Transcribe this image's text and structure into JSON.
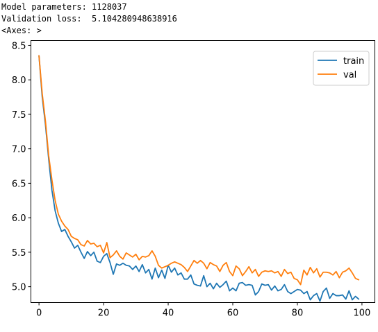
{
  "output": {
    "line1": "Model parameters: 1128037",
    "line2": "Validation loss:  5.104280948638916",
    "line3": "<Axes: >"
  },
  "chart_data": {
    "type": "line",
    "title": "",
    "xlabel": "",
    "ylabel": "",
    "xlim": [
      -2.5,
      104
    ],
    "ylim": [
      4.77,
      8.57
    ],
    "xticks": [
      0,
      20,
      40,
      60,
      80,
      100
    ],
    "yticks": [
      5.0,
      5.5,
      6.0,
      6.5,
      7.0,
      7.5,
      8.0,
      8.5
    ],
    "xtick_labels": [
      "0",
      "20",
      "40",
      "60",
      "80",
      "100"
    ],
    "ytick_labels": [
      "5.0",
      "5.5",
      "6.0",
      "6.5",
      "7.0",
      "7.5",
      "8.0",
      "8.5"
    ],
    "grid": false,
    "legend_position": "top-right",
    "x": [
      0,
      1,
      2,
      3,
      4,
      5,
      6,
      7,
      8,
      9,
      10,
      11,
      12,
      13,
      14,
      15,
      16,
      17,
      18,
      19,
      20,
      21,
      22,
      23,
      24,
      25,
      26,
      27,
      28,
      29,
      30,
      31,
      32,
      33,
      34,
      35,
      36,
      37,
      38,
      39,
      40,
      41,
      42,
      43,
      44,
      45,
      46,
      47,
      48,
      49,
      50,
      51,
      52,
      53,
      54,
      55,
      56,
      57,
      58,
      59,
      60,
      61,
      62,
      63,
      64,
      65,
      66,
      67,
      68,
      69,
      70,
      71,
      72,
      73,
      74,
      75,
      76,
      77,
      78,
      79,
      80,
      81,
      82,
      83,
      84,
      85,
      86,
      87,
      88,
      89,
      90,
      91,
      92,
      93,
      94,
      95,
      96,
      97,
      98,
      99
    ],
    "series": [
      {
        "name": "train",
        "color": "#1f77b4",
        "values": [
          8.35,
          7.75,
          7.35,
          6.85,
          6.4,
          6.1,
          5.92,
          5.8,
          5.83,
          5.73,
          5.65,
          5.56,
          5.6,
          5.5,
          5.41,
          5.51,
          5.45,
          5.5,
          5.37,
          5.35,
          5.44,
          5.48,
          5.35,
          5.18,
          5.33,
          5.31,
          5.34,
          5.31,
          5.3,
          5.25,
          5.3,
          5.22,
          5.32,
          5.2,
          5.25,
          5.11,
          5.27,
          5.13,
          5.24,
          5.12,
          5.31,
          5.21,
          5.27,
          5.17,
          5.2,
          5.11,
          5.11,
          5.17,
          5.04,
          5.02,
          5.01,
          5.16,
          5.0,
          5.05,
          4.97,
          5.05,
          4.99,
          5.03,
          5.08,
          4.94,
          4.98,
          4.94,
          5.05,
          5.06,
          5.02,
          5.03,
          5.02,
          4.88,
          4.93,
          5.04,
          5.02,
          5.03,
          4.95,
          5.01,
          4.94,
          4.96,
          5.03,
          4.93,
          4.9,
          4.93,
          4.96,
          4.95,
          4.9,
          4.93,
          4.81,
          4.87,
          4.9,
          4.79,
          4.93,
          4.98,
          4.83,
          4.9,
          4.87,
          4.87,
          4.88,
          4.82,
          4.94,
          4.81,
          4.86,
          4.82
        ]
      },
      {
        "name": "val",
        "color": "#ff7f0e",
        "values": [
          8.35,
          7.8,
          7.4,
          6.9,
          6.55,
          6.25,
          6.05,
          5.95,
          5.88,
          5.83,
          5.73,
          5.7,
          5.68,
          5.61,
          5.59,
          5.67,
          5.62,
          5.63,
          5.58,
          5.6,
          5.49,
          5.64,
          5.42,
          5.46,
          5.52,
          5.44,
          5.4,
          5.49,
          5.46,
          5.43,
          5.47,
          5.39,
          5.44,
          5.43,
          5.45,
          5.52,
          5.44,
          5.31,
          5.27,
          5.29,
          5.31,
          5.34,
          5.36,
          5.34,
          5.32,
          5.28,
          5.22,
          5.3,
          5.38,
          5.34,
          5.38,
          5.34,
          5.26,
          5.35,
          5.32,
          5.3,
          5.22,
          5.31,
          5.35,
          5.22,
          5.16,
          5.3,
          5.26,
          5.16,
          5.22,
          5.29,
          5.2,
          5.25,
          5.15,
          5.21,
          5.23,
          5.22,
          5.23,
          5.2,
          5.22,
          5.15,
          5.25,
          5.19,
          5.21,
          5.12,
          5.1,
          5.03,
          5.24,
          5.17,
          5.28,
          5.2,
          5.26,
          5.14,
          5.21,
          5.21,
          5.2,
          5.17,
          5.22,
          5.13,
          5.21,
          5.23,
          5.27,
          5.2,
          5.12,
          5.1
        ]
      }
    ]
  }
}
